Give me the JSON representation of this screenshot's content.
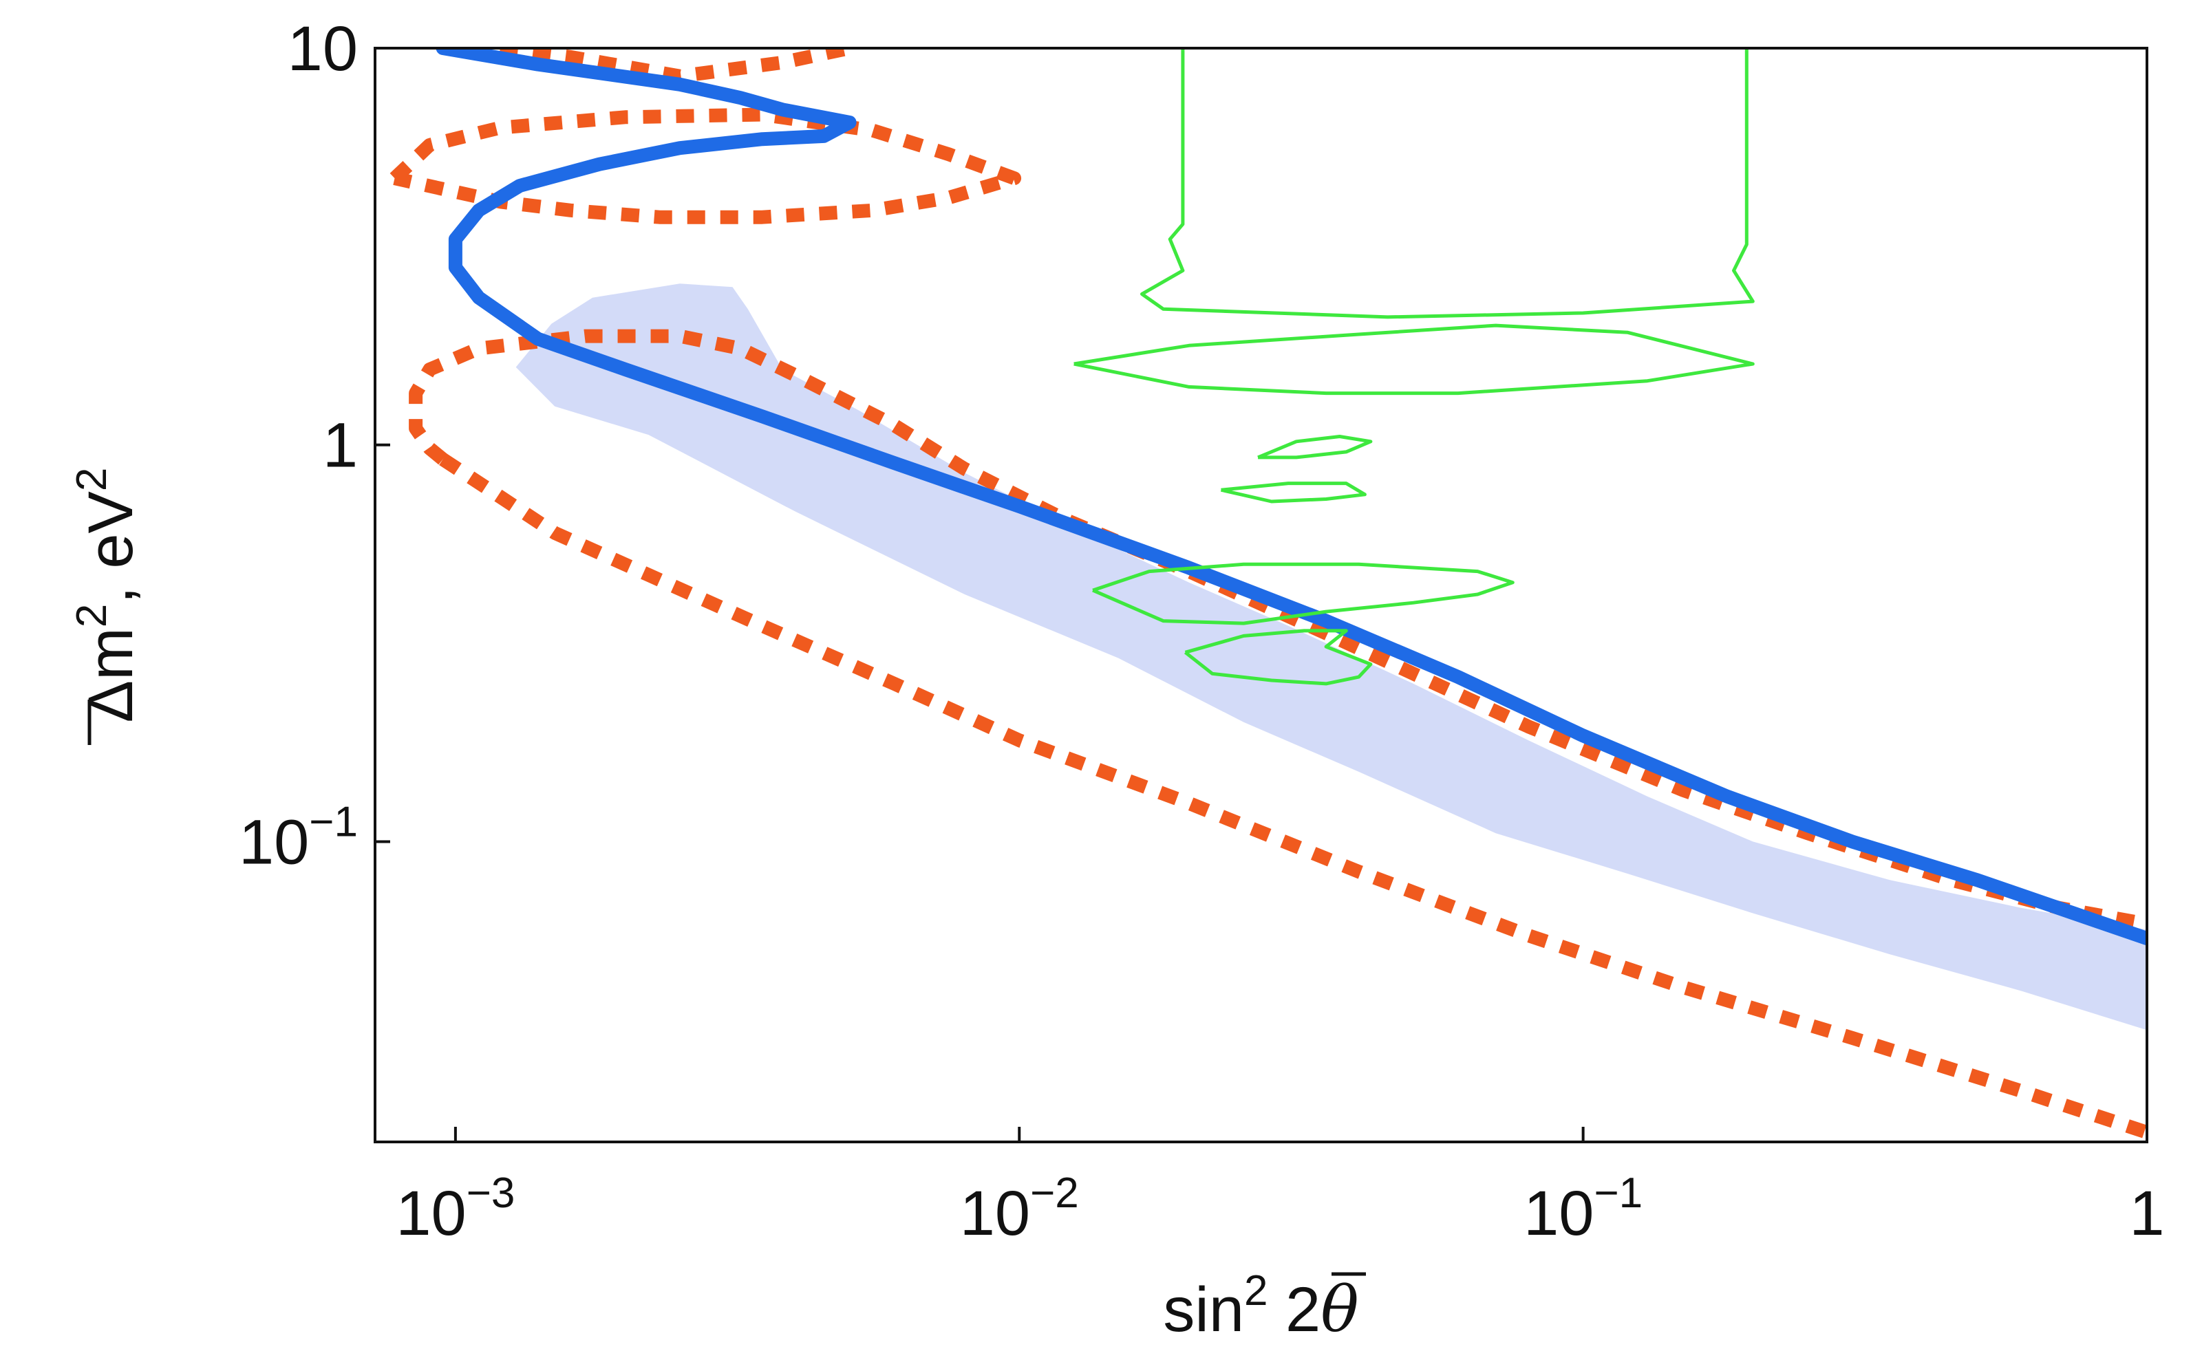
{
  "chart_data": {
    "type": "contour",
    "x_scale": "log",
    "y_scale": "log",
    "xlim": [
      0.00072,
      1.0
    ],
    "ylim": [
      0.0175,
      10
    ],
    "grid": false,
    "legend": "none",
    "xlabel": {
      "main": "sin",
      "sup": "2",
      "rest": " 2",
      "symbol": "θ"
    },
    "ylabel": {
      "main": "Δ",
      "m": "m",
      "sup1": "2",
      "rest": ", eV",
      "sup2": "2"
    },
    "x_ticks": [
      {
        "value": 0.001,
        "base": "10",
        "exp": "−3"
      },
      {
        "value": 0.01,
        "base": "10",
        "exp": "−2"
      },
      {
        "value": 0.1,
        "base": "10",
        "exp": "−1"
      },
      {
        "value": 1,
        "base": "1",
        "exp": ""
      }
    ],
    "y_ticks": [
      {
        "value": 10,
        "base": "10",
        "exp": ""
      },
      {
        "value": 1,
        "base": "1",
        "exp": ""
      },
      {
        "value": 0.1,
        "base": "10",
        "exp": "−1"
      }
    ],
    "colors": {
      "shaded": "#d3dbf8",
      "blue": "#1f6be6",
      "orange": "#f05a1e",
      "green": "#3ee83e",
      "axis": "#111111"
    },
    "series": [
      {
        "kind": "band",
        "color_key": "shaded",
        "points": [
          [
            0.00128,
            1.57
          ],
          [
            0.00148,
            2.02
          ],
          [
            0.00175,
            2.35
          ],
          [
            0.0025,
            2.55
          ],
          [
            0.0031,
            2.5
          ],
          [
            0.0033,
            2.2
          ],
          [
            0.0038,
            1.55
          ],
          [
            0.0052,
            1.22
          ],
          [
            0.008,
            0.85
          ],
          [
            0.013,
            0.6
          ],
          [
            0.02,
            0.45
          ],
          [
            0.03,
            0.35
          ],
          [
            0.05,
            0.25
          ],
          [
            0.08,
            0.18
          ],
          [
            0.13,
            0.13
          ],
          [
            0.2,
            0.1
          ],
          [
            0.35,
            0.08
          ],
          [
            0.6,
            0.068
          ],
          [
            1.0,
            0.06
          ],
          [
            1.0,
            0.0335
          ],
          [
            0.6,
            0.042
          ],
          [
            0.35,
            0.052
          ],
          [
            0.2,
            0.066
          ],
          [
            0.12,
            0.083
          ],
          [
            0.07,
            0.105
          ],
          [
            0.04,
            0.15
          ],
          [
            0.025,
            0.2
          ],
          [
            0.015,
            0.29
          ],
          [
            0.008,
            0.42
          ],
          [
            0.004,
            0.68
          ],
          [
            0.0022,
            1.06
          ],
          [
            0.0015,
            1.25
          ],
          [
            0.00128,
            1.57
          ]
        ]
      },
      {
        "kind": "line",
        "color_key": "orange",
        "dashed": true,
        "points": [
          [
            0.0012,
            10
          ],
          [
            0.0016,
            9.5
          ],
          [
            0.0025,
            8.5
          ],
          [
            0.0038,
            9.2
          ],
          [
            0.005,
            10
          ]
        ]
      },
      {
        "kind": "line",
        "color_key": "orange",
        "dashed": true,
        "points": [
          [
            0.00078,
            4.7
          ],
          [
            0.0009,
            5.7
          ],
          [
            0.0012,
            6.3
          ],
          [
            0.002,
            6.7
          ],
          [
            0.0035,
            6.8
          ],
          [
            0.0055,
            6.2
          ],
          [
            0.0075,
            5.4
          ],
          [
            0.0098,
            4.7
          ],
          [
            0.0075,
            4.2
          ],
          [
            0.0055,
            3.9
          ],
          [
            0.0035,
            3.75
          ],
          [
            0.0023,
            3.75
          ],
          [
            0.0016,
            3.9
          ],
          [
            0.0012,
            4.1
          ],
          [
            0.00078,
            4.7
          ]
        ]
      },
      {
        "kind": "line",
        "color_key": "orange",
        "dashed": true,
        "points": [
          [
            0.00095,
            0.92
          ],
          [
            0.0009,
            0.98
          ],
          [
            0.00085,
            1.1
          ],
          [
            0.00085,
            1.35
          ],
          [
            0.0009,
            1.55
          ],
          [
            0.0011,
            1.75
          ],
          [
            0.0017,
            1.88
          ],
          [
            0.0025,
            1.88
          ],
          [
            0.0032,
            1.75
          ],
          [
            0.004,
            1.5
          ],
          [
            0.006,
            1.12
          ],
          [
            0.008,
            0.87
          ],
          [
            0.012,
            0.65
          ],
          [
            0.02,
            0.48
          ],
          [
            0.035,
            0.335
          ],
          [
            0.05,
            0.265
          ],
          [
            0.08,
            0.195
          ],
          [
            0.15,
            0.135
          ],
          [
            0.25,
            0.105
          ],
          [
            0.45,
            0.08
          ],
          [
            0.7,
            0.068
          ],
          [
            1.0,
            0.062
          ]
        ]
      },
      {
        "kind": "line",
        "color_key": "orange",
        "dashed": true,
        "points": [
          [
            0.00095,
            0.92
          ],
          [
            0.0012,
            0.74
          ],
          [
            0.0015,
            0.6
          ],
          [
            0.0022,
            0.47
          ],
          [
            0.0035,
            0.35
          ],
          [
            0.006,
            0.25
          ],
          [
            0.01,
            0.18
          ],
          [
            0.02,
            0.125
          ],
          [
            0.04,
            0.084
          ],
          [
            0.08,
            0.058
          ],
          [
            0.15,
            0.043
          ],
          [
            0.3,
            0.032
          ],
          [
            0.6,
            0.0235
          ],
          [
            1.0,
            0.0185
          ]
        ]
      },
      {
        "kind": "line",
        "color_key": "blue",
        "dashed": false,
        "points": [
          [
            0.00095,
            10
          ],
          [
            0.0014,
            9.1
          ],
          [
            0.0025,
            8.1
          ],
          [
            0.0032,
            7.5
          ],
          [
            0.0038,
            7.0
          ],
          [
            0.005,
            6.5
          ],
          [
            0.0045,
            6.0
          ],
          [
            0.0035,
            5.9
          ],
          [
            0.0025,
            5.6
          ],
          [
            0.0018,
            5.1
          ],
          [
            0.0013,
            4.5
          ],
          [
            0.0011,
            3.9
          ],
          [
            0.001,
            3.3
          ],
          [
            0.001,
            2.8
          ],
          [
            0.0011,
            2.35
          ],
          [
            0.0014,
            1.85
          ],
          [
            0.002,
            1.55
          ],
          [
            0.0035,
            1.18
          ],
          [
            0.006,
            0.9
          ],
          [
            0.01,
            0.7
          ],
          [
            0.02,
            0.49
          ],
          [
            0.035,
            0.36
          ],
          [
            0.06,
            0.26
          ],
          [
            0.1,
            0.185
          ],
          [
            0.18,
            0.13
          ],
          [
            0.3,
            0.1
          ],
          [
            0.5,
            0.08
          ],
          [
            1.0,
            0.057
          ]
        ]
      },
      {
        "kind": "line",
        "color_key": "green",
        "dashed": false,
        "points": [
          [
            0.0195,
            10
          ],
          [
            0.0195,
            3.6
          ],
          [
            0.0185,
            3.3
          ],
          [
            0.0195,
            2.75
          ],
          [
            0.0165,
            2.4
          ],
          [
            0.018,
            2.2
          ],
          [
            0.045,
            2.1
          ],
          [
            0.1,
            2.15
          ],
          [
            0.2,
            2.3
          ],
          [
            0.185,
            2.75
          ],
          [
            0.195,
            3.2
          ],
          [
            0.195,
            3.6
          ],
          [
            0.195,
            10
          ]
        ]
      },
      {
        "kind": "line",
        "color_key": "green",
        "dashed": false,
        "points": [
          [
            0.0125,
            1.6
          ],
          [
            0.02,
            1.78
          ],
          [
            0.04,
            1.9
          ],
          [
            0.07,
            2.0
          ],
          [
            0.12,
            1.92
          ],
          [
            0.2,
            1.6
          ],
          [
            0.13,
            1.45
          ],
          [
            0.06,
            1.35
          ],
          [
            0.035,
            1.35
          ],
          [
            0.02,
            1.4
          ],
          [
            0.0125,
            1.6
          ]
        ]
      },
      {
        "kind": "line",
        "color_key": "green",
        "dashed": false,
        "points": [
          [
            0.0265,
            0.93
          ],
          [
            0.031,
            1.02
          ],
          [
            0.037,
            1.05
          ],
          [
            0.042,
            1.02
          ],
          [
            0.038,
            0.96
          ],
          [
            0.031,
            0.93
          ],
          [
            0.0265,
            0.93
          ]
        ]
      },
      {
        "kind": "line",
        "color_key": "green",
        "dashed": false,
        "points": [
          [
            0.0228,
            0.77
          ],
          [
            0.03,
            0.8
          ],
          [
            0.038,
            0.8
          ],
          [
            0.041,
            0.75
          ],
          [
            0.035,
            0.73
          ],
          [
            0.028,
            0.72
          ],
          [
            0.0228,
            0.77
          ]
        ]
      },
      {
        "kind": "line",
        "color_key": "green",
        "dashed": false,
        "points": [
          [
            0.0135,
            0.43
          ],
          [
            0.017,
            0.48
          ],
          [
            0.025,
            0.5
          ],
          [
            0.04,
            0.5
          ],
          [
            0.065,
            0.48
          ],
          [
            0.075,
            0.45
          ],
          [
            0.065,
            0.42
          ],
          [
            0.05,
            0.4
          ],
          [
            0.035,
            0.38
          ],
          [
            0.025,
            0.355
          ],
          [
            0.018,
            0.36
          ],
          [
            0.0135,
            0.43
          ]
        ]
      },
      {
        "kind": "line",
        "color_key": "green",
        "dashed": false,
        "points": [
          [
            0.0197,
            0.3
          ],
          [
            0.025,
            0.33
          ],
          [
            0.032,
            0.34
          ],
          [
            0.038,
            0.34
          ],
          [
            0.035,
            0.31
          ],
          [
            0.042,
            0.28
          ],
          [
            0.04,
            0.26
          ],
          [
            0.035,
            0.25
          ],
          [
            0.028,
            0.255
          ],
          [
            0.022,
            0.265
          ],
          [
            0.0197,
            0.3
          ]
        ]
      }
    ]
  }
}
